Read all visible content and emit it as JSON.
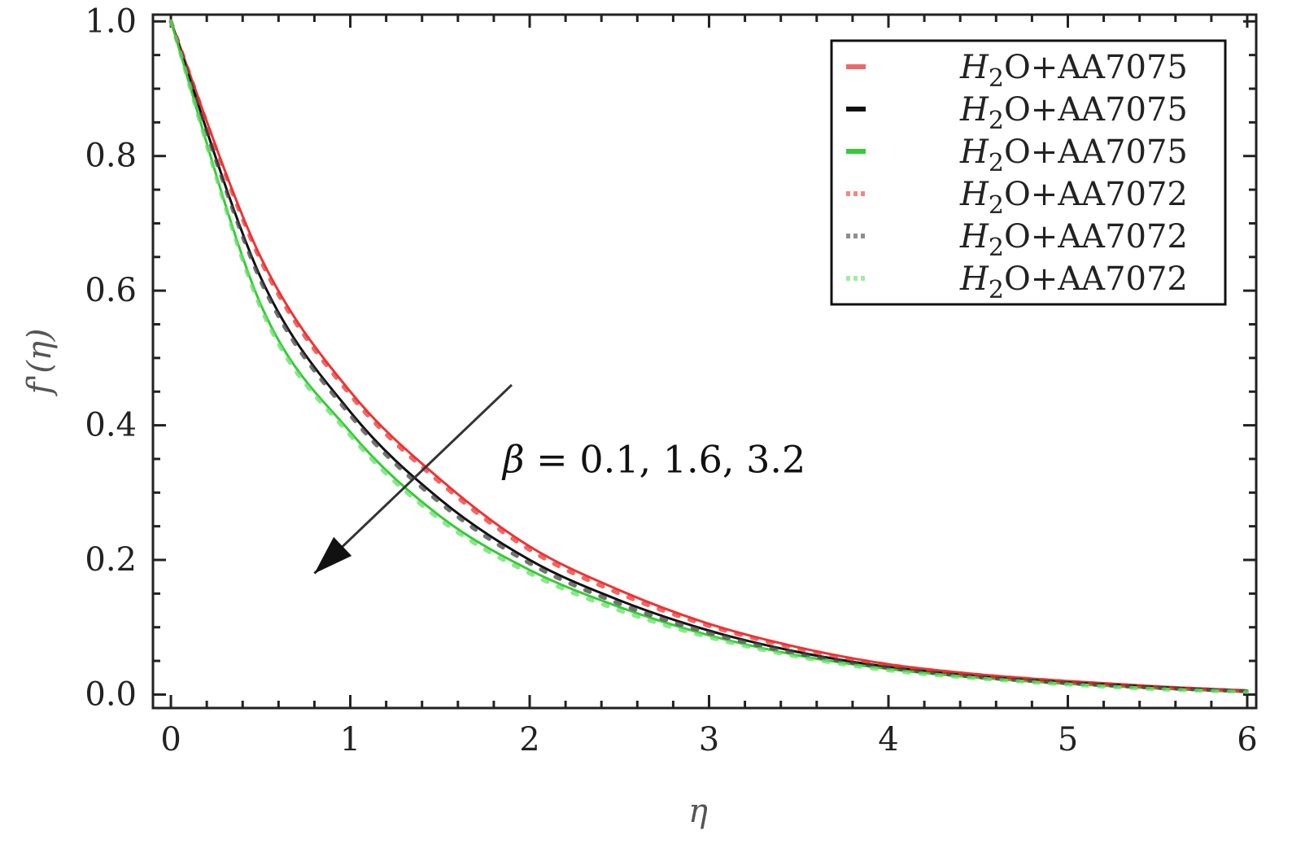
{
  "chart_data": {
    "type": "line",
    "xlabel": "η",
    "ylabel": "f'(η)",
    "xlim": [
      -0.1,
      6.05
    ],
    "ylim": [
      -0.02,
      1.01
    ],
    "xticks": [
      "0",
      "1",
      "2",
      "3",
      "4",
      "5",
      "6"
    ],
    "yticks": [
      "0.0",
      "0.2",
      "0.4",
      "0.6",
      "0.8",
      "1.0"
    ],
    "grid": false,
    "legend_position": "top-right",
    "series": [
      {
        "name": "H2O+AA7075",
        "legend_sub": "2",
        "legend_main": "H",
        "legend_rest": "O+AA7075",
        "color": "#ee3333",
        "style": "solid",
        "x": [
          0,
          0.5,
          1,
          1.5,
          2,
          2.5,
          3,
          3.5,
          4,
          4.5,
          5,
          5.5,
          6
        ],
        "y": [
          1.0,
          0.65,
          0.45,
          0.32,
          0.22,
          0.155,
          0.105,
          0.07,
          0.045,
          0.03,
          0.02,
          0.012,
          0.006
        ]
      },
      {
        "name": "H2O+AA7075",
        "legend_sub": "2",
        "legend_main": "H",
        "legend_rest": "O+AA7075",
        "color": "#111111",
        "style": "solid",
        "x": [
          0,
          0.5,
          1,
          1.5,
          2,
          2.5,
          3,
          3.5,
          4,
          4.5,
          5,
          5.5,
          6
        ],
        "y": [
          1.0,
          0.62,
          0.42,
          0.29,
          0.2,
          0.14,
          0.095,
          0.063,
          0.041,
          0.027,
          0.018,
          0.011,
          0.005
        ]
      },
      {
        "name": "H2O+AA7075",
        "legend_sub": "2",
        "legend_main": "H",
        "legend_rest": "O+AA7075",
        "color": "#33cc33",
        "style": "solid",
        "x": [
          0,
          0.5,
          1,
          1.5,
          2,
          2.5,
          3,
          3.5,
          4,
          4.5,
          5,
          5.5,
          6
        ],
        "y": [
          1.0,
          0.58,
          0.39,
          0.265,
          0.185,
          0.13,
          0.088,
          0.058,
          0.038,
          0.025,
          0.016,
          0.009,
          0.004
        ]
      },
      {
        "name": "H2O+AA7072",
        "legend_sub": "2",
        "legend_main": "H",
        "legend_rest": "O+AA7072",
        "color": "#ee3333",
        "style": "dashed",
        "x": [
          0,
          0.5,
          1,
          1.5,
          2,
          2.5,
          3,
          3.5,
          4,
          4.5,
          5,
          5.5,
          6
        ],
        "y": [
          1.0,
          0.645,
          0.445,
          0.315,
          0.215,
          0.15,
          0.102,
          0.068,
          0.044,
          0.029,
          0.019,
          0.011,
          0.005
        ]
      },
      {
        "name": "H2O+AA7072",
        "legend_sub": "2",
        "legend_main": "H",
        "legend_rest": "O+AA7072",
        "color": "#444444",
        "style": "dashed",
        "x": [
          0,
          0.5,
          1,
          1.5,
          2,
          2.5,
          3,
          3.5,
          4,
          4.5,
          5,
          5.5,
          6
        ],
        "y": [
          1.0,
          0.615,
          0.415,
          0.285,
          0.195,
          0.135,
          0.092,
          0.061,
          0.04,
          0.026,
          0.017,
          0.01,
          0.005
        ]
      },
      {
        "name": "H2O+AA7072",
        "legend_sub": "2",
        "legend_main": "H",
        "legend_rest": "O+AA7072",
        "color": "#66dd66",
        "style": "dashed",
        "x": [
          0,
          0.5,
          1,
          1.5,
          2,
          2.5,
          3,
          3.5,
          4,
          4.5,
          5,
          5.5,
          6
        ],
        "y": [
          1.0,
          0.575,
          0.385,
          0.26,
          0.18,
          0.125,
          0.085,
          0.056,
          0.036,
          0.024,
          0.015,
          0.008,
          0.004
        ]
      }
    ],
    "annotation": {
      "text_symbol": "β",
      "text_rest": " = 0.1, 1.6, 3.2",
      "arrow_from": [
        1.9,
        0.46
      ],
      "arrow_to": [
        0.8,
        0.18
      ],
      "text_at": [
        1.85,
        0.33
      ]
    }
  }
}
